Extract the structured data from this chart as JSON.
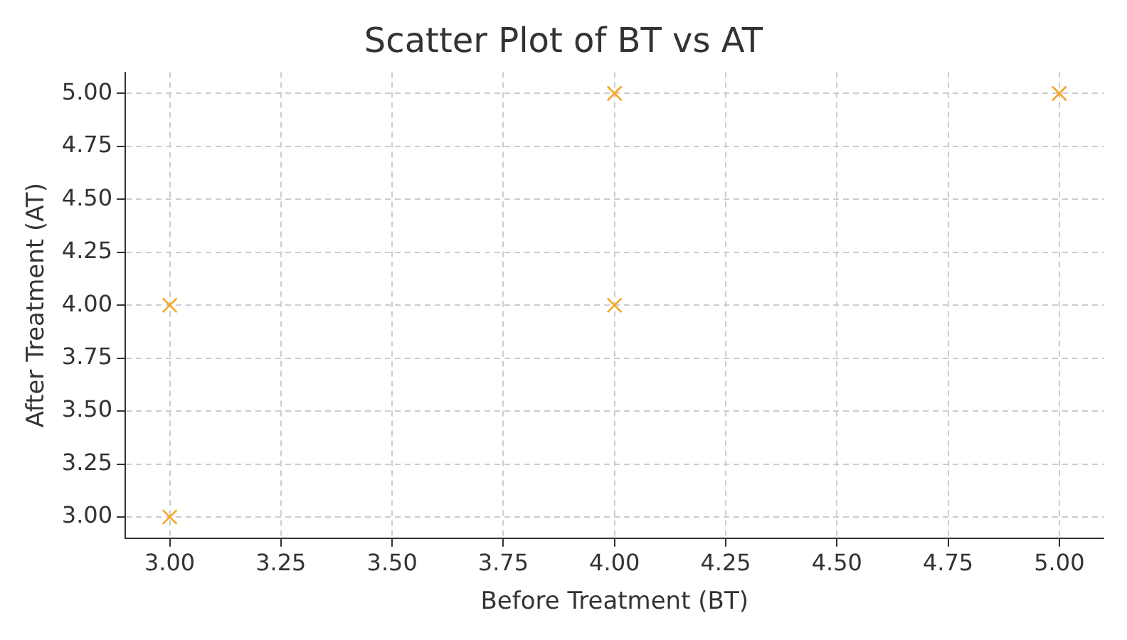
{
  "chart_data": {
    "type": "scatter",
    "title": "Scatter Plot of BT vs AT",
    "xlabel": "Before Treatment (BT)",
    "ylabel": "After Treatment (AT)",
    "x": [
      3,
      3,
      4,
      4,
      5
    ],
    "series": [
      {
        "color": "#f5a623",
        "values": [
          3,
          4,
          4,
          5,
          5
        ]
      }
    ],
    "xlim": [
      2.9,
      5.1
    ],
    "ylim": [
      2.9,
      5.1
    ],
    "xticks": [
      {
        "value": 3,
        "label": "3.00"
      },
      {
        "value": 3.25,
        "label": "3.25"
      },
      {
        "value": 3.5,
        "label": "3.50"
      },
      {
        "value": 3.75,
        "label": "3.75"
      },
      {
        "value": 4,
        "label": "4.00"
      },
      {
        "value": 4.25,
        "label": "4.25"
      },
      {
        "value": 4.5,
        "label": "4.50"
      },
      {
        "value": 4.75,
        "label": "4.75"
      },
      {
        "value": 5,
        "label": "5.00"
      }
    ],
    "yticks": [
      {
        "value": 3,
        "label": "3.00"
      },
      {
        "value": 3.25,
        "label": "3.25"
      },
      {
        "value": 3.5,
        "label": "3.50"
      },
      {
        "value": 3.75,
        "label": "3.75"
      },
      {
        "value": 4,
        "label": "4.00"
      },
      {
        "value": 4.25,
        "label": "4.25"
      },
      {
        "value": 4.5,
        "label": "4.50"
      },
      {
        "value": 4.75,
        "label": "4.75"
      },
      {
        "value": 5,
        "label": "5.00"
      }
    ],
    "grid": true,
    "marker": "cross",
    "legend": false
  }
}
